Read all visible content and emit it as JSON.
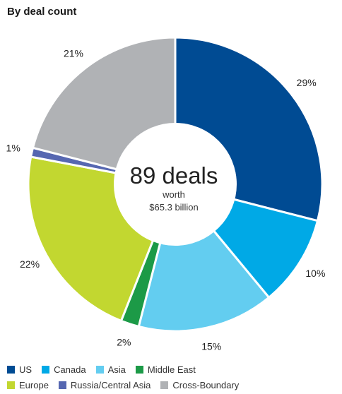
{
  "chart_data": {
    "type": "pie",
    "title": "By deal count",
    "center_text": {
      "main": "89 deals",
      "line2": "worth",
      "line3": "$65.3 billion"
    },
    "categories": [
      "US",
      "Canada",
      "Asia",
      "Middle East",
      "Europe",
      "Russia/Central Asia",
      "Cross-Boundary"
    ],
    "values": [
      29,
      10,
      15,
      2,
      22,
      1,
      21
    ],
    "value_labels": [
      "29%",
      "10%",
      "15%",
      "2%",
      "22%",
      "1%",
      "21%"
    ],
    "colors": [
      "#004b93",
      "#00a9e6",
      "#63cdf0",
      "#1c9a47",
      "#c2d730",
      "#5667b1",
      "#b0b2b5"
    ],
    "legend_position": "bottom-left"
  }
}
